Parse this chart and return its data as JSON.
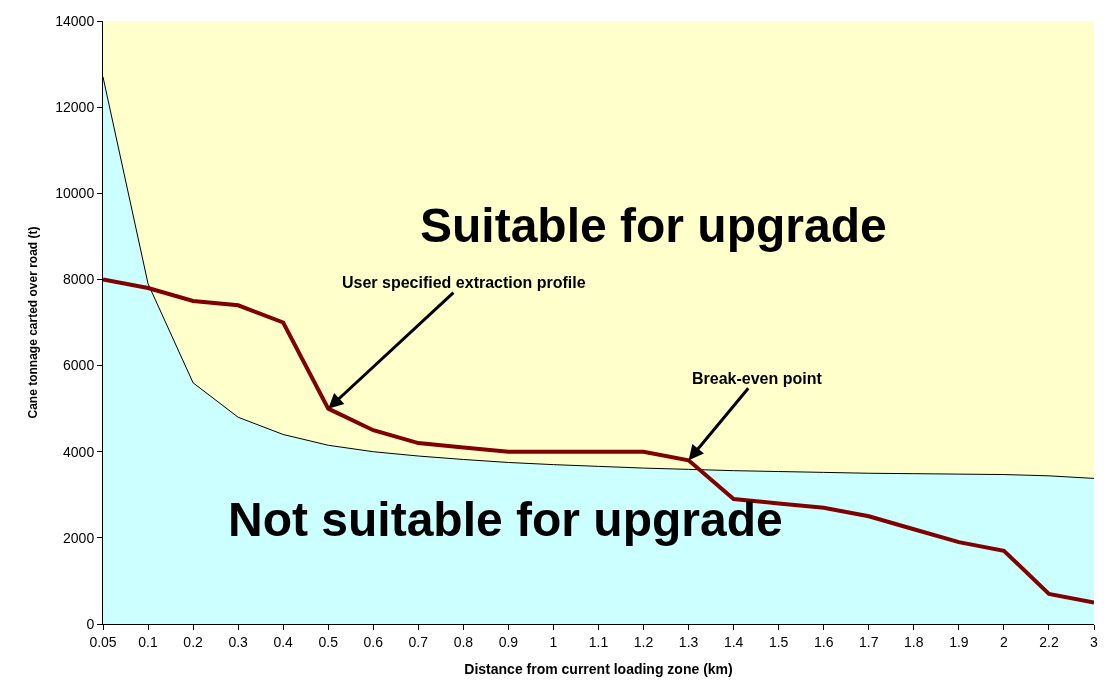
{
  "chart_data": {
    "type": "area",
    "xlabel": "Distance from current loading zone (km)",
    "ylabel": "Cane tonnage carted over road (t)",
    "categories": [
      "0.05",
      "0.1",
      "0.2",
      "0.3",
      "0.4",
      "0.5",
      "0.6",
      "0.7",
      "0.8",
      "0.9",
      "1",
      "1.1",
      "1.2",
      "1.3",
      "1.4",
      "1.5",
      "1.6",
      "1.7",
      "1.8",
      "1.9",
      "2",
      "2.2",
      "3"
    ],
    "series": [
      {
        "color": "#ccffff",
        "values": [
          12700,
          7900,
          5600,
          4800,
          4400,
          4150,
          4000,
          3900,
          3820,
          3750,
          3700,
          3660,
          3620,
          3590,
          3560,
          3540,
          3520,
          3500,
          3490,
          3480,
          3470,
          3440,
          3380
        ]
      },
      {
        "type": "line",
        "color": "#800000",
        "values": [
          8000,
          7800,
          7500,
          7400,
          7000,
          5000,
          4500,
          4200,
          4100,
          4000,
          4000,
          4000,
          4000,
          3800,
          2900,
          2800,
          2700,
          2500,
          2200,
          1900,
          1700,
          700,
          500
        ]
      }
    ],
    "bands": [
      {
        "axis": "y",
        "from": 0,
        "to": 14000,
        "color": "#ffffcc"
      }
    ],
    "annotations": [
      "Suitable for upgrade",
      "Not suitable for upgrade",
      {
        "text": "User specified extraction profile",
        "x": "0.5",
        "y": 5000
      },
      {
        "text": "Break-even point",
        "x": "1.3",
        "y": 3800
      }
    ],
    "ylim": [
      0,
      14000
    ],
    "yticks": [
      0,
      2000,
      4000,
      6000,
      8000,
      10000,
      12000,
      14000
    ],
    "grid": false,
    "marker": "none",
    "line_style": "solid"
  }
}
